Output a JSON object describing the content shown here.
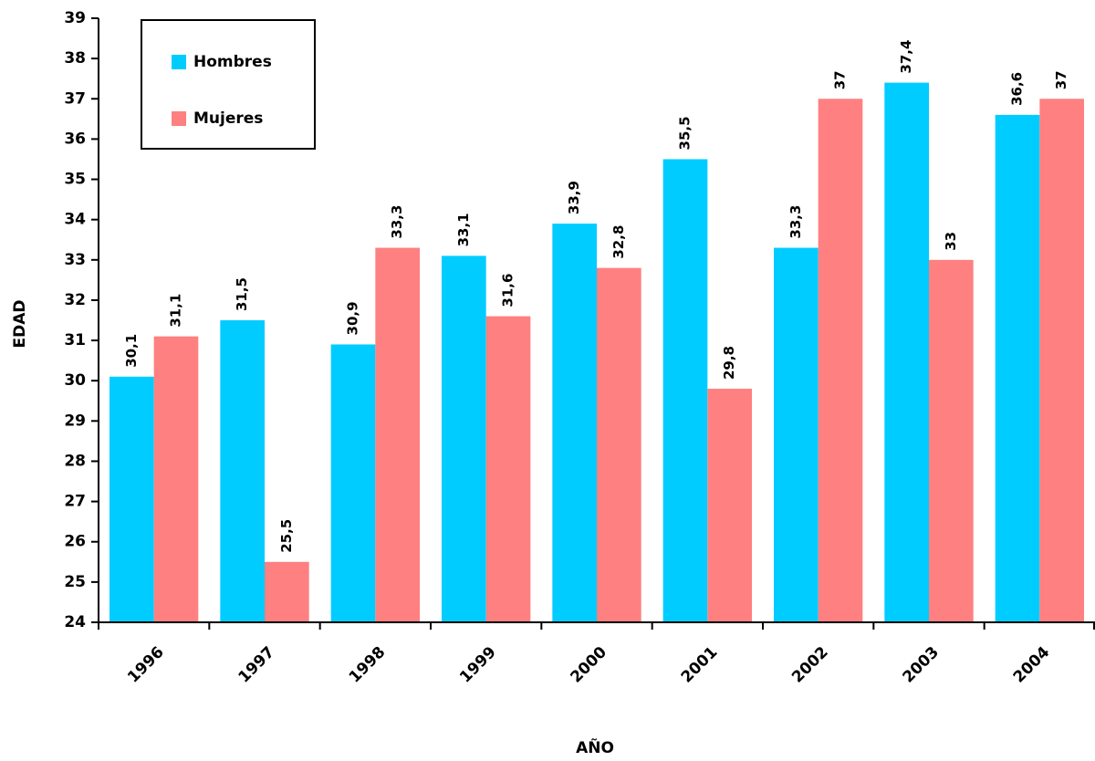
{
  "chart_data": {
    "type": "bar",
    "x_label": "AÑO",
    "y_label": "EDAD",
    "categories": [
      "1996",
      "1997",
      "1998",
      "1999",
      "2000",
      "2001",
      "2002",
      "2003",
      "2004"
    ],
    "series": [
      {
        "name": "Hombres",
        "color": "#00ccff",
        "values": [
          30.1,
          31.5,
          30.9,
          33.1,
          33.9,
          35.5,
          33.3,
          37.4,
          36.6
        ],
        "value_labels": [
          "30,1",
          "31,5",
          "30,9",
          "33,1",
          "33,9",
          "35,5",
          "33,3",
          "37,4",
          "36,6"
        ]
      },
      {
        "name": "Mujeres",
        "color": "#ff8080",
        "values": [
          31.1,
          25.5,
          33.3,
          31.6,
          32.8,
          29.8,
          37,
          33,
          37
        ],
        "value_labels": [
          "31,1",
          "25,5",
          "33,3",
          "31,6",
          "32,8",
          "29,8",
          "37",
          "33",
          "37"
        ]
      }
    ],
    "ylim": [
      24,
      39
    ],
    "yticks": [
      24,
      25,
      26,
      27,
      28,
      29,
      30,
      31,
      32,
      33,
      34,
      35,
      36,
      37,
      38,
      39
    ],
    "grid": false,
    "legend": "upper left"
  }
}
